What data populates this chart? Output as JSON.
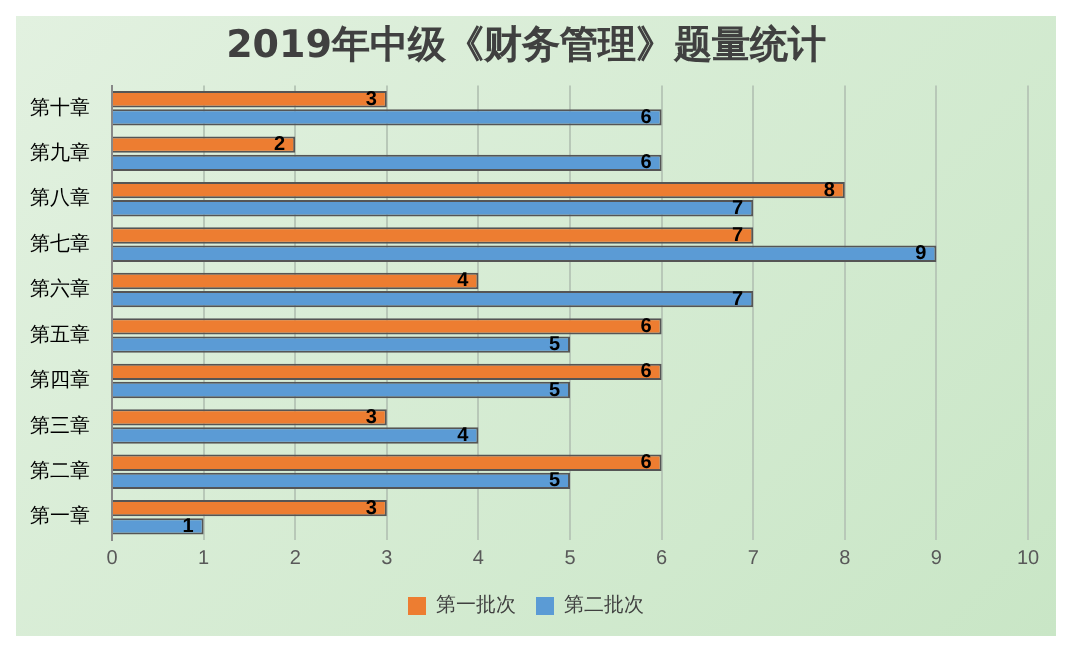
{
  "chart_data": {
    "type": "bar",
    "orientation": "horizontal",
    "title": "2019年中级《财务管理》题量统计",
    "categories": [
      "第十章",
      "第九章",
      "第八章",
      "第七章",
      "第六章",
      "第五章",
      "第四章",
      "第三章",
      "第二章",
      "第一章"
    ],
    "series": [
      {
        "name": "第一批次",
        "color": "#ed7d31",
        "values": [
          3,
          2,
          8,
          7,
          4,
          6,
          6,
          3,
          6,
          3
        ]
      },
      {
        "name": "第二批次",
        "color": "#5b9bd5",
        "values": [
          6,
          6,
          7,
          9,
          7,
          5,
          5,
          4,
          5,
          1
        ]
      }
    ],
    "xlim": [
      0,
      10
    ],
    "xticks": [
      0,
      1,
      2,
      3,
      4,
      5,
      6,
      7,
      8,
      9,
      10
    ],
    "grid": "x",
    "legend": "bottom",
    "data_labels": true
  }
}
